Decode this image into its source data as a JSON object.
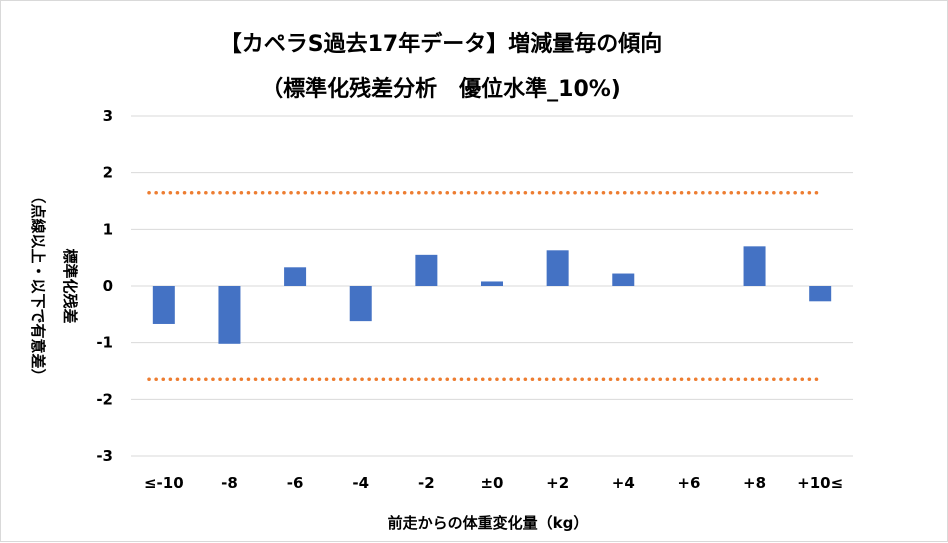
{
  "chart_data": {
    "type": "bar",
    "title": "【カペラS過去17年データ】増減量毎の傾向",
    "subtitle": "（標準化残差分析　優位水準_10%)",
    "xlabel": "前走からの体重変化量（kg）",
    "ylabel": "標準化残差",
    "ylabel2": "（点線以上・以下で有意差）",
    "categories": [
      "≤-10",
      "-8",
      "-6",
      "-4",
      "-2",
      "±0",
      "+2",
      "+4",
      "+6",
      "+8",
      "+10≤"
    ],
    "values": [
      -0.67,
      -1.02,
      0.33,
      -0.62,
      0.55,
      0.08,
      0.63,
      0.22,
      0,
      0.7,
      -0.27
    ],
    "ylim": [
      -3,
      3
    ],
    "yticks": [
      3,
      2,
      1,
      0,
      -1,
      -2,
      -3
    ],
    "threshold_lines": [
      1.645,
      -1.645
    ],
    "grid": true,
    "colors": {
      "bar": "#4472C4",
      "threshold": "#ED7D31",
      "grid": "#d9d9d9"
    }
  }
}
